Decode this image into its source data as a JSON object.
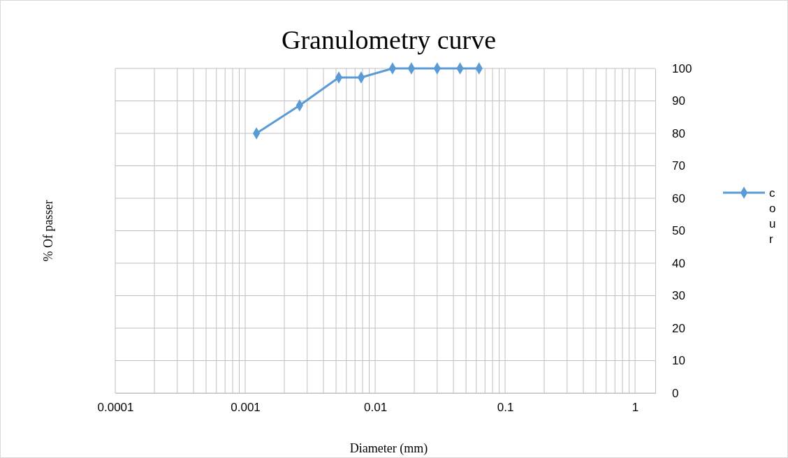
{
  "chart_data": {
    "type": "line",
    "title": "Granulometry curve",
    "xlabel": "Diameter (mm)",
    "ylabel": "% Of passer",
    "x": [
      0.00122,
      0.00262,
      0.00525,
      0.0078,
      0.0136,
      0.019,
      0.03,
      0.045,
      0.063
    ],
    "series": [
      {
        "name": "cour",
        "color": "#5b9bd5",
        "values": [
          80,
          88.6,
          97.2,
          97.2,
          100,
          100,
          100,
          100,
          100
        ]
      }
    ],
    "log": "x",
    "xlim": [
      0.0001,
      1.43
    ],
    "xticks": [
      0.0001,
      {
        "value": 0.0002,
        "label": null
      },
      {
        "value": 0.0003,
        "label": null
      },
      {
        "value": 0.0004,
        "label": null
      },
      {
        "value": 0.0005,
        "label": null
      },
      {
        "value": 0.0006,
        "label": null
      },
      {
        "value": 0.0007,
        "label": null
      },
      {
        "value": 0.0008,
        "label": null
      },
      {
        "value": 0.0009,
        "label": null
      },
      0.001,
      {
        "value": 0.002,
        "label": null
      },
      {
        "value": 0.003,
        "label": null
      },
      {
        "value": 0.004,
        "label": null
      },
      {
        "value": 0.005,
        "label": null
      },
      {
        "value": 0.006,
        "label": null
      },
      {
        "value": 0.007,
        "label": null
      },
      {
        "value": 0.008,
        "label": null
      },
      {
        "value": 0.009,
        "label": null
      },
      0.01,
      {
        "value": 0.02,
        "label": null
      },
      {
        "value": 0.03,
        "label": null
      },
      {
        "value": 0.04,
        "label": null
      },
      {
        "value": 0.05,
        "label": null
      },
      {
        "value": 0.06,
        "label": null
      },
      {
        "value": 0.07,
        "label": null
      },
      {
        "value": 0.08,
        "label": null
      },
      {
        "value": 0.09,
        "label": null
      },
      0.1,
      {
        "value": 0.2,
        "label": null
      },
      {
        "value": 0.3,
        "label": null
      },
      {
        "value": 0.4,
        "label": null
      },
      {
        "value": 0.5,
        "label": null
      },
      {
        "value": 0.6,
        "label": null
      },
      {
        "value": 0.7,
        "label": null
      },
      {
        "value": 0.8,
        "label": null
      },
      {
        "value": 0.9,
        "label": null
      },
      1
    ],
    "ylim": [
      0,
      100
    ],
    "yticks": [
      0,
      10,
      20,
      30,
      40,
      50,
      60,
      70,
      80,
      90,
      100
    ],
    "grid": true,
    "legend": "right",
    "marker": "diamond",
    "line_style": "solid"
  }
}
